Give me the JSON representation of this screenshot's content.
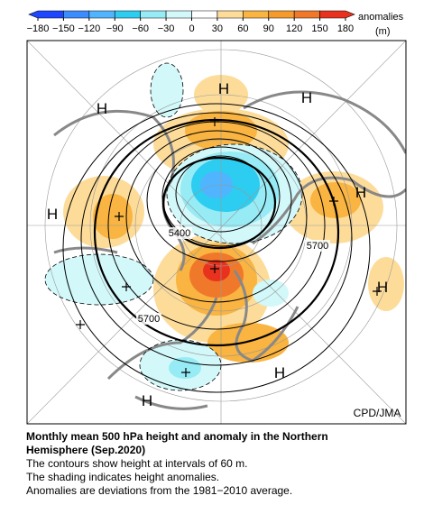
{
  "colorbar": {
    "unit_title": "anomalies",
    "unit": "(m)",
    "ticks": [
      {
        "value": -180,
        "label": "−180"
      },
      {
        "value": -150,
        "label": "−150"
      },
      {
        "value": -120,
        "label": "−120"
      },
      {
        "value": -90,
        "label": "−90"
      },
      {
        "value": -60,
        "label": "−60"
      },
      {
        "value": -30,
        "label": "−30"
      },
      0,
      30,
      60,
      90,
      120,
      150,
      180
    ],
    "colors": [
      "#1e46ff",
      "#3c8cff",
      "#50b4ff",
      "#2ccdf0",
      "#96ebf5",
      "#d2f8fa",
      "#ffffff",
      "#fddc9a",
      "#f9b441",
      "#f59a2c",
      "#f0782a",
      "#e8321e"
    ]
  },
  "map": {
    "highs": [
      "H",
      "H",
      "H",
      "H",
      "H",
      "H",
      "H",
      "H"
    ],
    "contour_labels": [
      "5400",
      "5700",
      "5700"
    ],
    "credit": "CPD/JMA"
  },
  "caption": {
    "title_lines": [
      "Monthly mean 500 hPa height and anomaly in the Northern",
      "Hemisphere (Sep.2020)"
    ],
    "notes": [
      "The contours show height at intervals of 60 m.",
      "The shading indicates height anomalies.",
      "Anomalies are deviations from the 1981−2010 average."
    ]
  }
}
